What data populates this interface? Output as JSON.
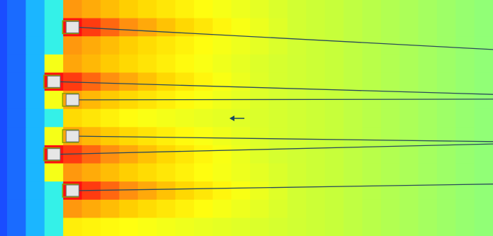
{
  "chart_data": {
    "type": "heatmap",
    "columns": 26,
    "rows": 13,
    "value_range": [
      0,
      1
    ],
    "colormap": [
      {
        "stop": 0.0,
        "color": "#1a4dff"
      },
      {
        "stop": 0.15,
        "color": "#19a8ff"
      },
      {
        "stop": 0.25,
        "color": "#22eeff"
      },
      {
        "stop": 0.4,
        "color": "#7dff8c"
      },
      {
        "stop": 0.55,
        "color": "#c7ff3a"
      },
      {
        "stop": 0.7,
        "color": "#ffff10"
      },
      {
        "stop": 0.8,
        "color": "#ffd400"
      },
      {
        "stop": 0.9,
        "color": "#ff8c10"
      },
      {
        "stop": 1.0,
        "color": "#ff1010"
      }
    ],
    "hot_rows": [
      {
        "row": 1,
        "start_col": 3,
        "peak": 1.0
      },
      {
        "row": 4,
        "start_col": 2,
        "peak": 1.0
      },
      {
        "row": 5,
        "start_col": 3,
        "peak": 0.78
      },
      {
        "row": 7,
        "start_col": 3,
        "peak": 0.82
      },
      {
        "row": 8,
        "start_col": 2,
        "peak": 1.0
      },
      {
        "row": 10,
        "start_col": 3,
        "peak": 1.0
      }
    ],
    "emitters": [
      {
        "id": "emitter-1",
        "col": 3,
        "row": 1
      },
      {
        "id": "emitter-2",
        "col": 2,
        "row": 4
      },
      {
        "id": "emitter-3",
        "col": 3,
        "row": 5
      },
      {
        "id": "emitter-4",
        "col": 3,
        "row": 7
      },
      {
        "id": "emitter-5",
        "col": 2,
        "row": 8
      },
      {
        "id": "emitter-6",
        "col": 3,
        "row": 10
      }
    ],
    "direction_indicator": {
      "type": "arrow",
      "direction": "left"
    },
    "colors": {
      "beam_line": "#2a4a5a",
      "emitter_fill": "#e6e6e6",
      "emitter_outline": "#6b6b6b",
      "emitter_accent": "#8fa000",
      "arrow": "#1a4a60"
    }
  }
}
